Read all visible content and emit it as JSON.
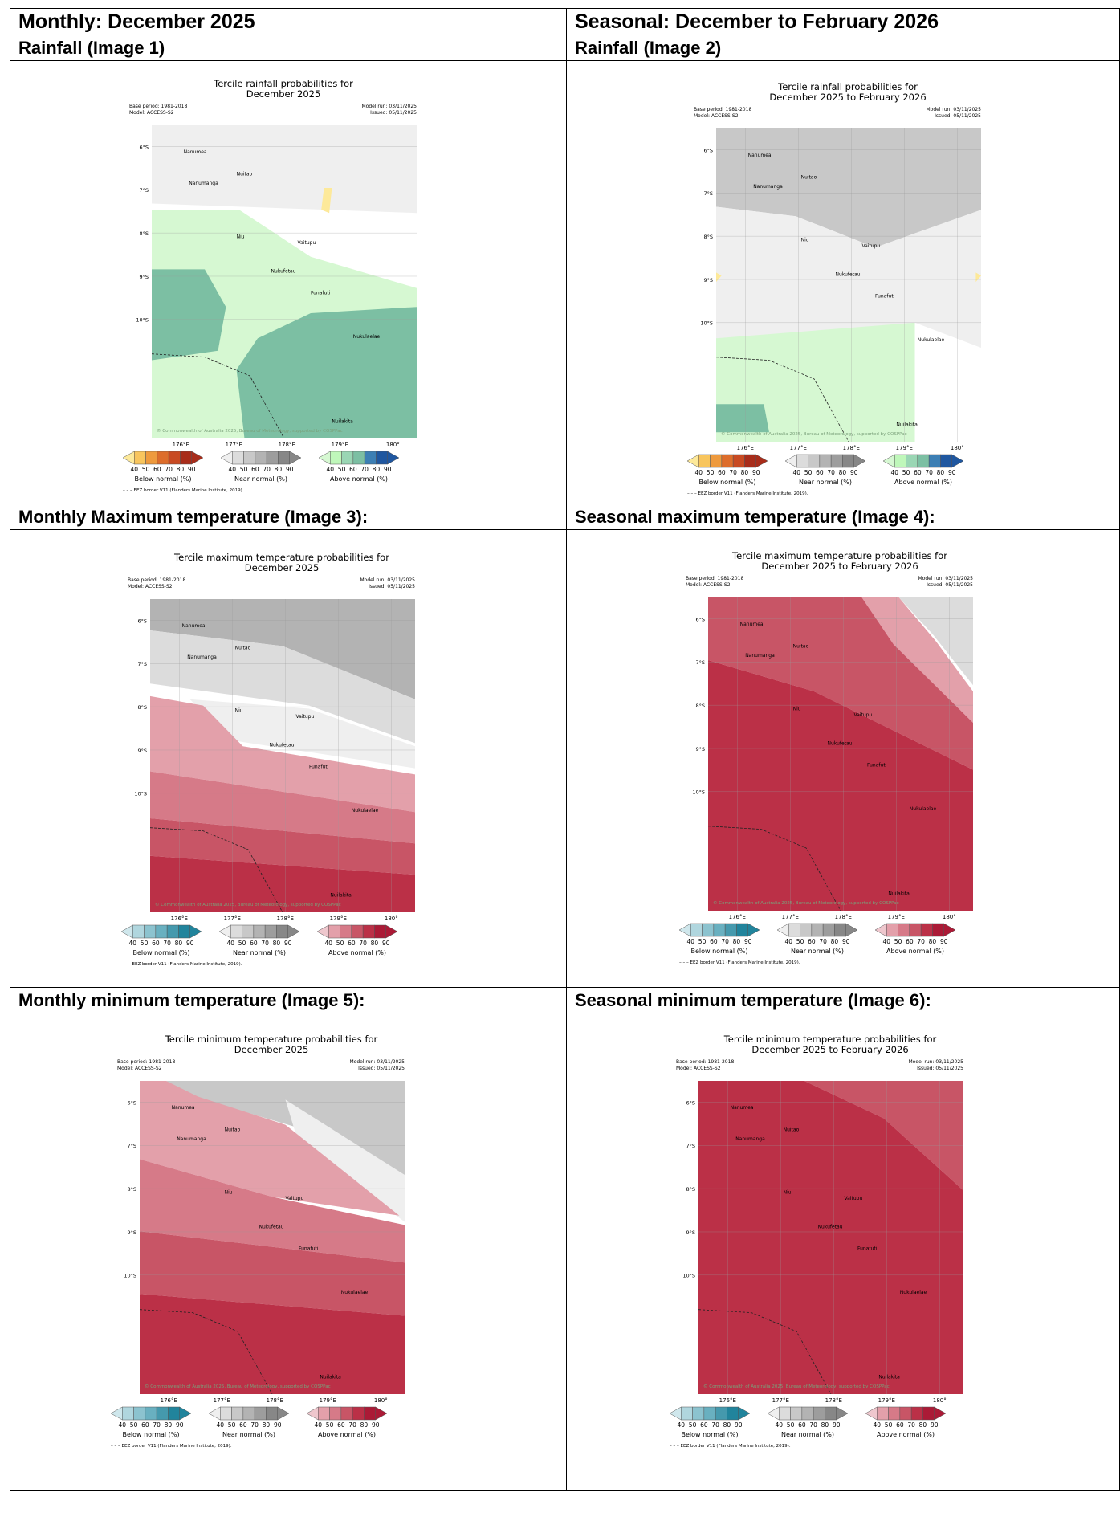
{
  "table": {
    "row0": {
      "left": "Monthly: December 2025",
      "right": "Seasonal: December to February 2026"
    },
    "row1": {
      "left": "Rainfall (Image 1)",
      "right": "Rainfall (Image 2)"
    },
    "row3": {
      "left": "Monthly Maximum temperature (Image 3):",
      "right": "Seasonal maximum temperature (Image 4):"
    },
    "row5": {
      "left": "Monthly minimum temperature (Image 5):",
      "right": "Seasonal minimum temperature (Image 6):"
    }
  },
  "common": {
    "base_period": "Base period: 1981-2018",
    "model": "Model: ACCESS-S2",
    "model_run": "Model run: 03/11/2025",
    "issued": "Issued: 05/11/2025",
    "lat_labels": [
      "6°S",
      "7°S",
      "8°S",
      "9°S",
      "10°S"
    ],
    "lon_labels": [
      "176°E",
      "177°E",
      "178°E",
      "179°E",
      "180°"
    ],
    "islands": [
      "Nanumea",
      "Nuitao",
      "Nanumanga",
      "Niu",
      "Vaitupu",
      "Nukufetau",
      "Funafuti",
      "Nukulaelae",
      "Nuilakita"
    ],
    "copyright": "© Commonwealth of Australia 2025, Bureau of Meteorology, supported by COSPPac",
    "eez": "EEZ border V11 (Flanders Marine Institute, 2019).",
    "ticks": [
      "40",
      "50",
      "60",
      "70",
      "80",
      "90"
    ],
    "below": "Below normal (%)",
    "near": "Near normal (%)",
    "above": "Above normal (%)"
  },
  "maps": [
    {
      "title1": "Tercile rainfall probabilities for",
      "title2": "December 2025",
      "scheme": "rain",
      "pattern": "rain_month"
    },
    {
      "title1": "Tercile rainfall probabilities for",
      "title2": "December 2025 to February 2026",
      "scheme": "rain",
      "pattern": "rain_season"
    },
    {
      "title1": "Tercile maximum temperature probabilities for",
      "title2": "December 2025",
      "scheme": "temp",
      "pattern": "tmax_month"
    },
    {
      "title1": "Tercile maximum temperature probabilities for",
      "title2": "December 2025 to February 2026",
      "scheme": "temp",
      "pattern": "tmax_season"
    },
    {
      "title1": "Tercile minimum temperature probabilities for",
      "title2": "December 2025",
      "scheme": "temp",
      "pattern": "tmin_month"
    },
    {
      "title1": "Tercile minimum temperature probabilities for",
      "title2": "December 2025 to February 2026",
      "scheme": "temp",
      "pattern": "tmin_season"
    }
  ],
  "colors": {
    "rain_below": [
      "#fde99a",
      "#f8c55d",
      "#ee9a3d",
      "#dd6d2b",
      "#c84a22",
      "#a82c1a"
    ],
    "temp_below": [
      "#cfe7ec",
      "#b0d6de",
      "#8cc3cf",
      "#69b0c0",
      "#4599ad",
      "#21849c"
    ],
    "near": [
      "#efefef",
      "#dcdcdc",
      "#c8c8c8",
      "#b3b3b3",
      "#9d9d9d",
      "#878787"
    ],
    "rain_above": [
      "#d6f8d2",
      "#bff7ba",
      "#9ad6b4",
      "#7cbfa3",
      "#3c7fb4",
      "#1f57a0"
    ],
    "temp_above": [
      "#eec7cd",
      "#e3a0aa",
      "#d67a88",
      "#c85566",
      "#bb3047",
      "#ab1a36"
    ]
  }
}
